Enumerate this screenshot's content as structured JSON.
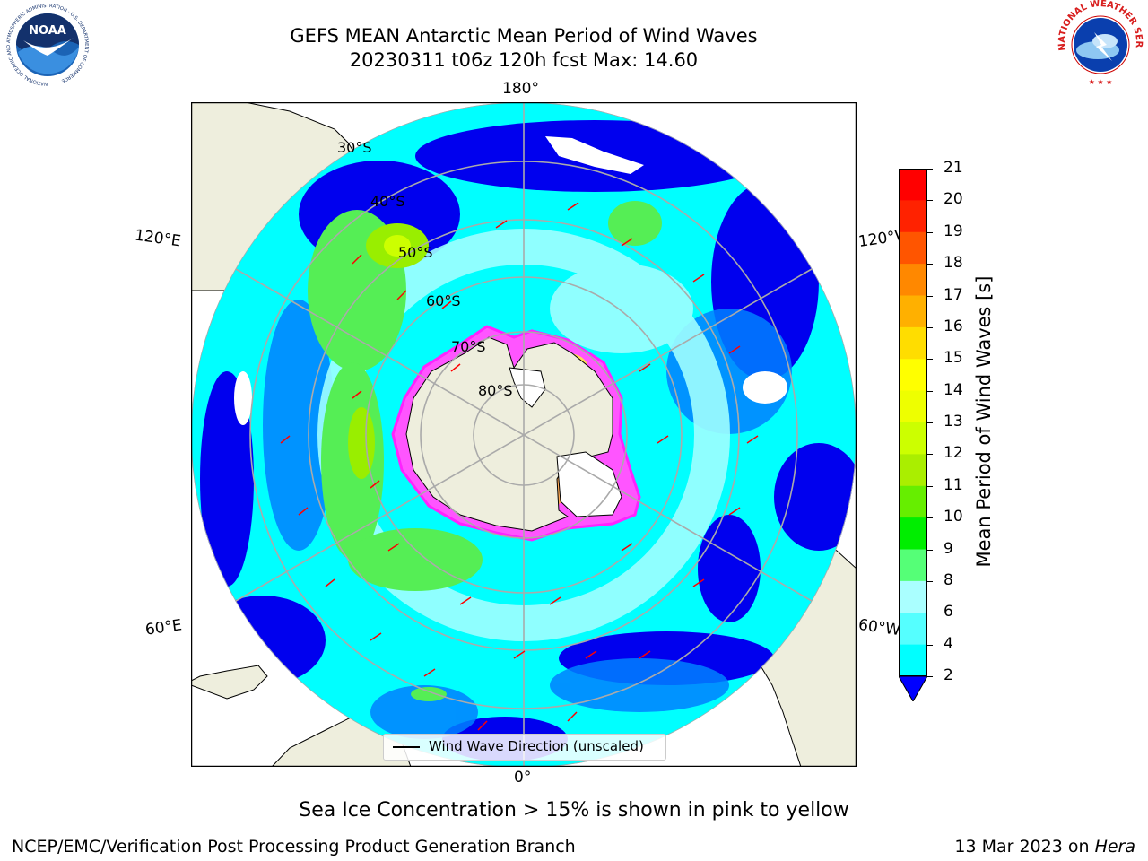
{
  "header": {
    "title_line1": "GEFS MEAN Antarctic Mean Period of Wind Waves",
    "title_line2": "20230311 t06z 120h fcst   Max: 14.60"
  },
  "logos": {
    "noaa_text": "NOAA",
    "noaa_ring_text": "NATIONAL OCEANIC AND ATMOSPHERIC ADMINISTRATION · U.S. DEPARTMENT OF COMMERCE",
    "nws_ring_text": "NATIONAL WEATHER SERVICE"
  },
  "map": {
    "projection": "south-polar-stereographic",
    "longitude_labels": {
      "top": "180°",
      "bottom": "0°",
      "left_upper": "120°E",
      "left_lower": "60°E",
      "right_upper": "120°W",
      "right_lower": "60°W"
    },
    "latitude_labels": [
      "30°S",
      "40°S",
      "50°S",
      "60°S",
      "70°S",
      "80°S"
    ],
    "legend_label": "Wind Wave Direction (unscaled)",
    "colors": {
      "land": "#eeeedd",
      "ocean_low": "#0000ee",
      "ocean_mid": "#00ffff",
      "ice": "#ff55ff",
      "arrow": "#ff0000"
    }
  },
  "colorbar": {
    "label": "Mean Period of Wind Waves [s]",
    "ticks": [
      "2",
      "4",
      "6",
      "8",
      "9",
      "10",
      "11",
      "12",
      "13",
      "14",
      "15",
      "16",
      "17",
      "18",
      "19",
      "20",
      "21"
    ],
    "colors": [
      "#0000ff",
      "#007fff",
      "#00ffff",
      "#55ffff",
      "#aaffff",
      "#55ff77",
      "#00ee00",
      "#66ee00",
      "#aaee00",
      "#ccff00",
      "#eeff00",
      "#ffff00",
      "#ffdd00",
      "#ffb000",
      "#ff8800",
      "#ff5500",
      "#ff2200",
      "#ff0000"
    ]
  },
  "footer": {
    "caption": "Sea Ice Concentration > 15% is shown in pink to yellow",
    "left": "NCEP/EMC/Verification Post Processing Product Generation Branch",
    "right_date": "13 Mar 2023 on ",
    "right_host": "Hera"
  }
}
